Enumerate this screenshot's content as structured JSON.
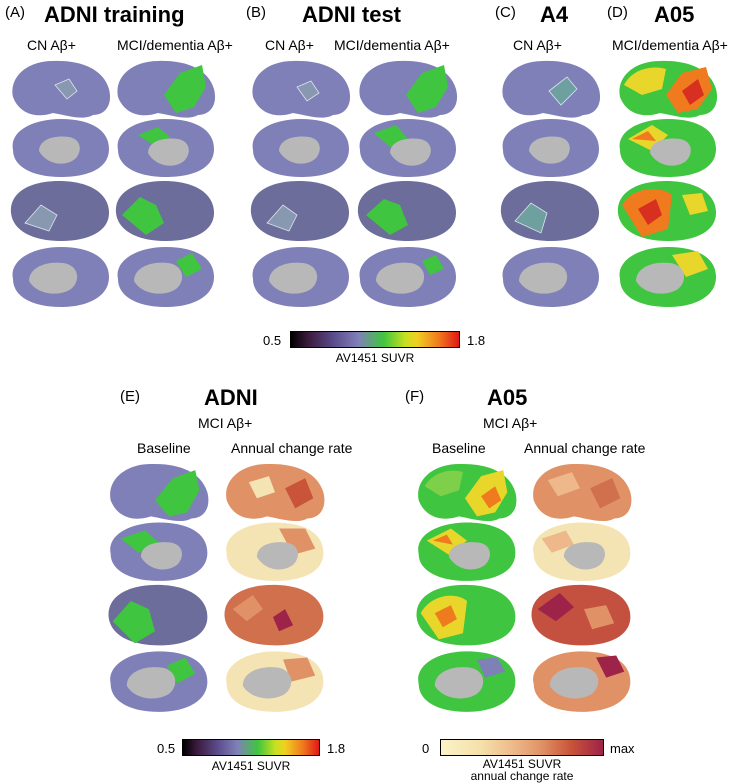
{
  "panels": [
    {
      "letter": "(A)",
      "title": "ADNI training",
      "subtitles": [
        "CN Aβ+",
        "MCI/dementia Aβ+"
      ]
    },
    {
      "letter": "(B)",
      "title": "ADNI test",
      "subtitles": [
        "CN Aβ+",
        "MCI/dementia Aβ+"
      ]
    },
    {
      "letter": "(C)",
      "title": "A4",
      "subtitles": [
        "CN Aβ+"
      ]
    },
    {
      "letter": "(D)",
      "title": "A05",
      "subtitles": [
        "MCI/dementia Aβ+"
      ]
    },
    {
      "letter": "(E)",
      "title": "ADNI",
      "group": "MCI Aβ+",
      "subtitles": [
        "Baseline",
        "Annual change rate"
      ]
    },
    {
      "letter": "(F)",
      "title": "A05",
      "group": "MCI Aβ+",
      "subtitles": [
        "Baseline",
        "Annual change rate"
      ]
    }
  ],
  "colorbars": {
    "suvr_top": {
      "min": "0.5",
      "max": "1.8",
      "label": "AV1451 SUVR"
    },
    "suvr_bottom": {
      "min": "0.5",
      "max": "1.8",
      "label": "AV1451 SUVR"
    },
    "change": {
      "min": "0",
      "max": "max",
      "label_line1": "AV1451 SUVR",
      "label_line2": "annual change rate"
    }
  },
  "colors": {
    "baseline": "#7f80b8",
    "medial_wall": "#b8b8b8",
    "green": "#3fc53f",
    "yellow": "#e8d72a",
    "orange": "#f07a1e",
    "red": "#d83020",
    "cream": "#f4e4b4",
    "salmon": "#e09266",
    "maroon": "#9e2348"
  }
}
